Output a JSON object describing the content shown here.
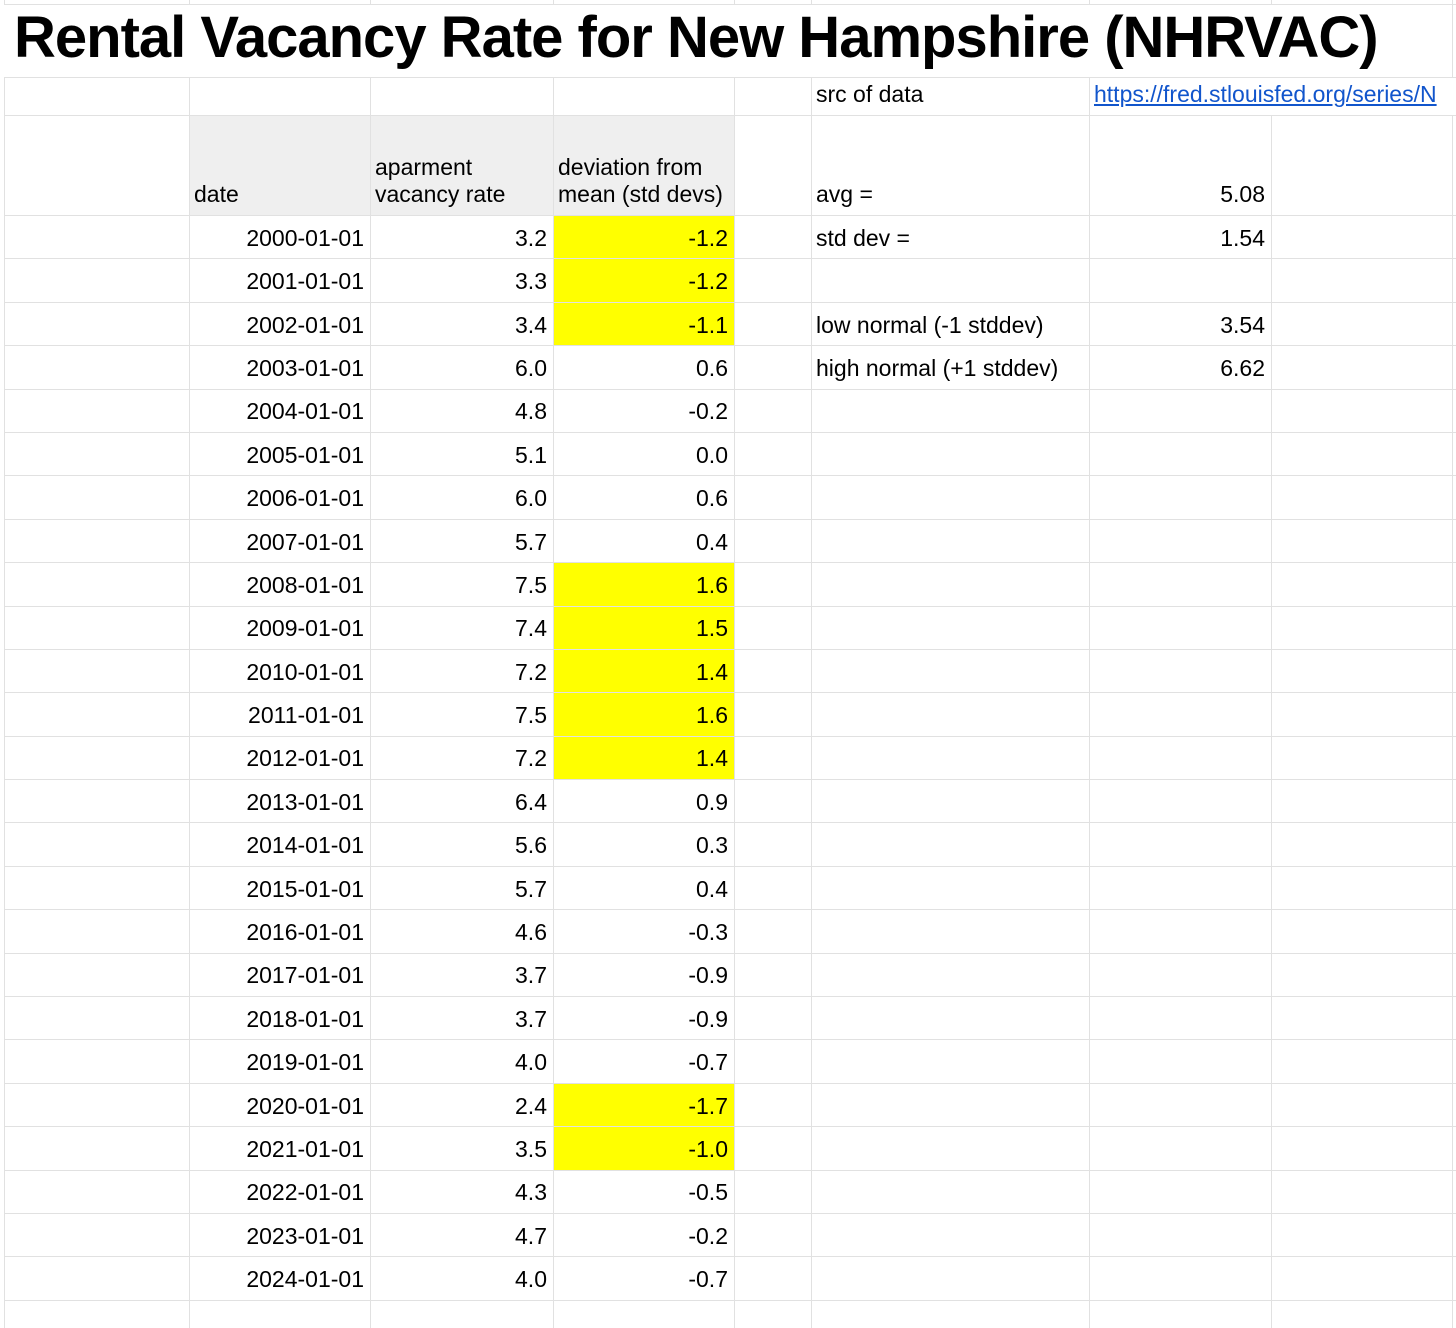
{
  "title": "Rental Vacancy Rate for New Hampshire (NHRVAC)",
  "source": {
    "label": "src of data",
    "link_text": "https://fred.stlouisfed.org/series/N"
  },
  "stats": {
    "avg_label": "avg =",
    "avg_value": "5.08"
  },
  "table": {
    "headers": {
      "date": "date",
      "rate": "aparment vacancy rate",
      "dev": "deviation from mean (std devs)"
    },
    "rows": [
      {
        "date": "2000-01-01",
        "rate": "3.2",
        "dev": "-1.2",
        "highlight": true,
        "side_label": "std dev =",
        "side_value": "1.54"
      },
      {
        "date": "2001-01-01",
        "rate": "3.3",
        "dev": "-1.2",
        "highlight": true
      },
      {
        "date": "2002-01-01",
        "rate": "3.4",
        "dev": "-1.1",
        "highlight": true,
        "side_label": "low normal (-1 stddev)",
        "side_value": "3.54"
      },
      {
        "date": "2003-01-01",
        "rate": "6.0",
        "dev": "0.6",
        "highlight": false,
        "side_label": "high normal (+1 stddev)",
        "side_value": "6.62"
      },
      {
        "date": "2004-01-01",
        "rate": "4.8",
        "dev": "-0.2",
        "highlight": false
      },
      {
        "date": "2005-01-01",
        "rate": "5.1",
        "dev": "0.0",
        "highlight": false
      },
      {
        "date": "2006-01-01",
        "rate": "6.0",
        "dev": "0.6",
        "highlight": false
      },
      {
        "date": "2007-01-01",
        "rate": "5.7",
        "dev": "0.4",
        "highlight": false
      },
      {
        "date": "2008-01-01",
        "rate": "7.5",
        "dev": "1.6",
        "highlight": true
      },
      {
        "date": "2009-01-01",
        "rate": "7.4",
        "dev": "1.5",
        "highlight": true
      },
      {
        "date": "2010-01-01",
        "rate": "7.2",
        "dev": "1.4",
        "highlight": true
      },
      {
        "date": "2011-01-01",
        "rate": "7.5",
        "dev": "1.6",
        "highlight": true
      },
      {
        "date": "2012-01-01",
        "rate": "7.2",
        "dev": "1.4",
        "highlight": true
      },
      {
        "date": "2013-01-01",
        "rate": "6.4",
        "dev": "0.9",
        "highlight": false
      },
      {
        "date": "2014-01-01",
        "rate": "5.6",
        "dev": "0.3",
        "highlight": false
      },
      {
        "date": "2015-01-01",
        "rate": "5.7",
        "dev": "0.4",
        "highlight": false
      },
      {
        "date": "2016-01-01",
        "rate": "4.6",
        "dev": "-0.3",
        "highlight": false
      },
      {
        "date": "2017-01-01",
        "rate": "3.7",
        "dev": "-0.9",
        "highlight": false
      },
      {
        "date": "2018-01-01",
        "rate": "3.7",
        "dev": "-0.9",
        "highlight": false
      },
      {
        "date": "2019-01-01",
        "rate": "4.0",
        "dev": "-0.7",
        "highlight": false
      },
      {
        "date": "2020-01-01",
        "rate": "2.4",
        "dev": "-1.7",
        "highlight": true
      },
      {
        "date": "2021-01-01",
        "rate": "3.5",
        "dev": "-1.0",
        "highlight": true
      },
      {
        "date": "2022-01-01",
        "rate": "4.3",
        "dev": "-0.5",
        "highlight": false
      },
      {
        "date": "2023-01-01",
        "rate": "4.7",
        "dev": "-0.2",
        "highlight": false
      },
      {
        "date": "2024-01-01",
        "rate": "4.0",
        "dev": "-0.7",
        "highlight": false
      }
    ]
  },
  "colors": {
    "highlight": "#ffff00",
    "link": "#1155cc",
    "header_bg": "#efefef",
    "gridline": "#e1e1e1"
  }
}
